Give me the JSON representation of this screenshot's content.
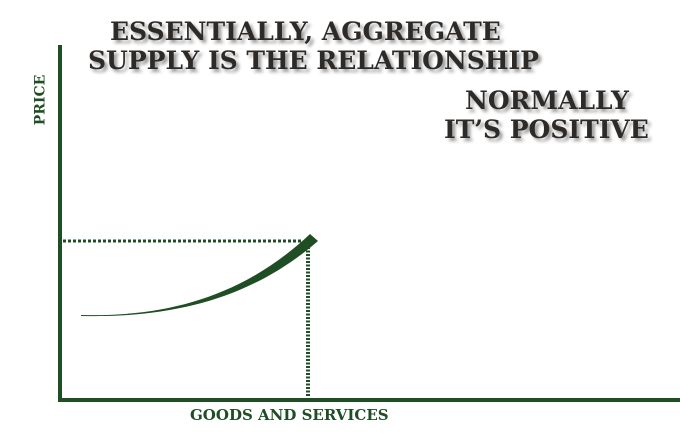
{
  "heading": {
    "line1": "ESSENTIALLY, AGGREGATE",
    "line2": "SUPPLY IS THE RELATIONSHIP"
  },
  "note": {
    "line1": "NORMALLY",
    "line2": "IT’S POSITIVE"
  },
  "axes": {
    "y_label": "PRICE",
    "x_label": "GOODS AND SERVICES"
  },
  "colors": {
    "axis_green": "#1f4d24",
    "heading_text": "#2e2a27"
  }
}
